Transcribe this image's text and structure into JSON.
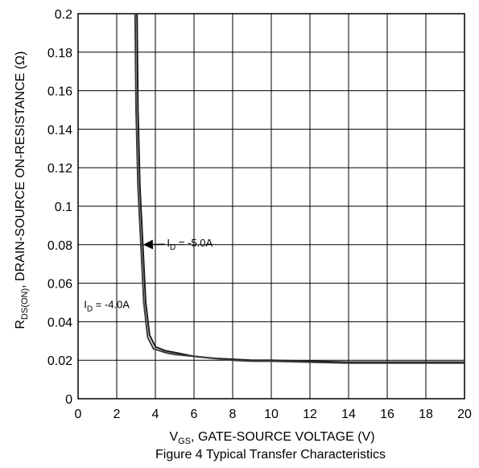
{
  "chart_data": {
    "type": "line",
    "xlabel_main": "V",
    "xlabel_sub": "GS",
    "xlabel_rest": ", GATE-SOURCE VOLTAGE (V)",
    "ylabel_main": "R",
    "ylabel_sub": "DS(ON)",
    "ylabel_rest": ", DRAIN-SOURCE ON-RESISTANCE (Ω)",
    "xlim": [
      0,
      20
    ],
    "ylim": [
      0,
      0.2
    ],
    "x_ticks": [
      "0",
      "2",
      "4",
      "6",
      "8",
      "10",
      "12",
      "14",
      "16",
      "18",
      "20"
    ],
    "y_ticks": [
      "0",
      "0.02",
      "0.04",
      "0.06",
      "0.08",
      "0.1",
      "0.12",
      "0.14",
      "0.16",
      "0.18",
      "0.2"
    ],
    "grid": true,
    "series": [
      {
        "name": "I_D = -5.0A",
        "color": "#1a1a1a",
        "x": [
          3.05,
          3.1,
          3.2,
          3.35,
          3.5,
          3.7,
          4.0,
          4.5,
          5.0,
          6.0,
          7.0,
          8.0,
          9.0,
          10.0,
          12.0,
          14.0,
          16.0,
          18.0,
          20.0
        ],
        "y": [
          0.2,
          0.15,
          0.11,
          0.08,
          0.05,
          0.033,
          0.027,
          0.025,
          0.024,
          0.022,
          0.021,
          0.0205,
          0.02,
          0.02,
          0.0195,
          0.019,
          0.019,
          0.019,
          0.019
        ]
      },
      {
        "name": "I_D = -4.0A",
        "color": "#3a3a3a",
        "x": [
          2.95,
          3.0,
          3.1,
          3.25,
          3.4,
          3.6,
          3.9,
          4.5,
          5.0,
          6.0,
          7.0,
          8.0,
          9.0,
          10.0,
          12.0,
          14.0,
          16.0,
          18.0,
          20.0
        ],
        "y": [
          0.2,
          0.15,
          0.11,
          0.08,
          0.05,
          0.032,
          0.026,
          0.024,
          0.023,
          0.022,
          0.021,
          0.02,
          0.0195,
          0.0195,
          0.019,
          0.0185,
          0.0185,
          0.0185,
          0.0185
        ]
      }
    ],
    "annotations": [
      {
        "main": "I",
        "sub": "D",
        "rest": " = -5.0A",
        "x": 4.6,
        "y": 0.079,
        "arrow_to": [
          3.35,
          0.08
        ]
      },
      {
        "main": "I",
        "sub": "D",
        "rest": " = -4.0A",
        "x": 0.3,
        "y": 0.047
      }
    ]
  },
  "caption": "Figure 4 Typical Transfer Characteristics"
}
